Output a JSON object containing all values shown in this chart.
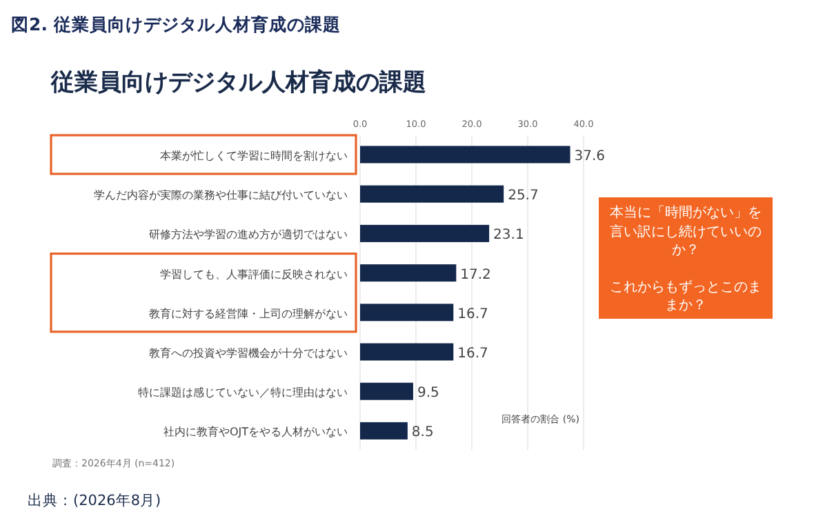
{
  "chart_data": {
    "type": "bar",
    "orientation": "horizontal",
    "title": "図2. 従業員向けデジタル人材育成の課題",
    "subtitle": "従業員向けデジタル人材育成の課題",
    "xlabel": "回答者の割合 (%)",
    "categories": [
      "本業が忙しくて学習に時間を割けない",
      "学んだ内容が実際の業務や仕事に結び付いていない",
      "研修方法や学習の進め方が適切ではない",
      "学習しても、人事評価に反映されない",
      "教育に対する経営陣・上司の理解がない",
      "教育への投資や学習機会が十分ではない",
      "特に課題は感じていない／特に理由はない",
      "社内に教育やOJTをやる人材がいない"
    ],
    "values": [
      37.6,
      25.7,
      23.1,
      17.2,
      16.7,
      16.7,
      9.5,
      8.5
    ],
    "color": "#14284b",
    "data_labels": true,
    "xlim": [
      0,
      40
    ],
    "xticks": [
      {
        "value": 0,
        "label": "0.0"
      },
      {
        "value": 10,
        "label": "10.0"
      },
      {
        "value": 20,
        "label": "20.0"
      },
      {
        "value": 30,
        "label": "30.0"
      },
      {
        "value": 40,
        "label": "40.0"
      }
    ],
    "grid": "x",
    "annotations": [
      "本当に「時間がない」を言い訳にし続けていいのか？",
      "これからもずっとこのままか？",
      "調査：2026年4月 (n=412)",
      "出典：(2026年8月)"
    ]
  }
}
